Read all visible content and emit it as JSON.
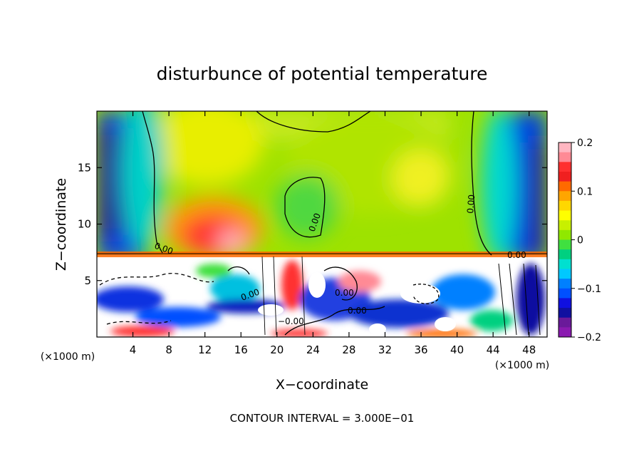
{
  "chart_data": {
    "type": "heatmap",
    "title": "disturbunce of potential temperature",
    "xlabel": "X−coordinate",
    "ylabel": "Z−coordinate",
    "x_unit_left": "(×1000 m)",
    "x_unit_right": "(×1000 m)",
    "footer": "CONTOUR INTERVAL = 3.000E−01",
    "xlim": [
      0,
      50
    ],
    "ylim": [
      0,
      20
    ],
    "xticks": [
      4,
      8,
      12,
      16,
      20,
      24,
      28,
      32,
      36,
      40,
      44,
      48
    ],
    "xtick_labels": [
      "4",
      "8",
      "12",
      "16",
      "20",
      "24",
      "28",
      "32",
      "36",
      "40",
      "44",
      "48"
    ],
    "yticks": [
      5,
      10,
      15
    ],
    "ytick_labels": [
      "5",
      "10",
      "15"
    ],
    "colorbar": {
      "min": -0.2,
      "max": 0.2,
      "ticks": [
        0.2,
        0.1,
        0,
        -0.1,
        -0.2
      ],
      "tick_labels": [
        "0.2",
        "0.1",
        "0",
        "−0.1",
        "−0.2"
      ],
      "colors": [
        "#ffb6c1",
        "#ff8a95",
        "#ff3030",
        "#f02020",
        "#ff6a00",
        "#ffa500",
        "#ffd700",
        "#ffff00",
        "#c8f000",
        "#90e800",
        "#40e040",
        "#00d080",
        "#00e0d0",
        "#00c8ff",
        "#0080ff",
        "#0050ff",
        "#1010e0",
        "#1010a0",
        "#6a1a9a",
        "#8a1ab0"
      ]
    },
    "contour_labels": [
      "0.00",
      "0.00",
      "0.00",
      "0.00",
      "0.00",
      "0.00",
      "−0.00",
      "0.00"
    ]
  }
}
